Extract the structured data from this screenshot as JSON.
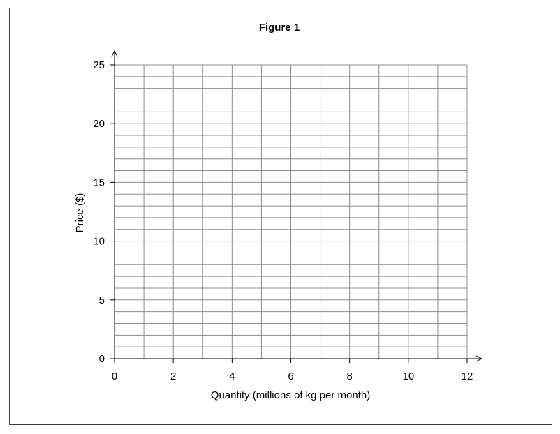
{
  "chart_data": {
    "type": "line",
    "title": "Figure 1",
    "xlabel": "Quantity (millions of kg per month)",
    "ylabel": "Price ($)",
    "xlim": [
      0,
      12
    ],
    "ylim": [
      0,
      25
    ],
    "x_ticks": [
      "0",
      "2",
      "4",
      "6",
      "8",
      "10",
      "12"
    ],
    "y_ticks": [
      "0",
      "5",
      "10",
      "15",
      "20",
      "25"
    ],
    "grid": true,
    "grid_x_step": 1,
    "grid_y_step": 1,
    "series": [],
    "colors": {
      "grid": "#8c8c8c",
      "axis": "#000000",
      "frame": "#3a3a3a"
    }
  }
}
